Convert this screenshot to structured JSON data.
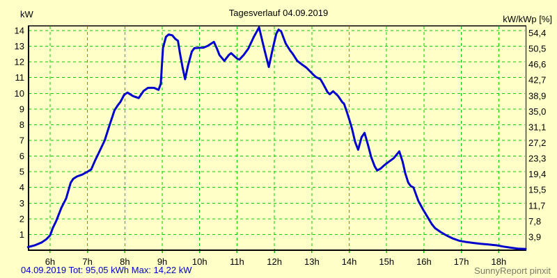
{
  "window": {
    "background": "#FFFFC8"
  },
  "header": {
    "left_axis_unit": "kW",
    "title": "Tagesverlauf 04.09.2019",
    "right_axis_unit": "kW/kWp [%]"
  },
  "footer": {
    "summary": "04.09.2019 Tot: 95,05 kWh Max: 14,22 kW",
    "branding": "SunnyReport pinxit"
  },
  "colors": {
    "background": "#FFFFC8",
    "grid": "#00CC00",
    "curve": "#0000CC",
    "frame": "#000000",
    "summary_text": "#0000CC",
    "branding_text": "#7A7A66"
  },
  "chart_data": {
    "type": "line",
    "title": "Tagesverlauf 04.09.2019",
    "grid": true,
    "legend_position": "none",
    "left_axis": {
      "label": "kW",
      "ticks": [
        14,
        13,
        12,
        11,
        10,
        9,
        8,
        7,
        6,
        5,
        4,
        3,
        2,
        1
      ]
    },
    "right_axis": {
      "label": "kW/kWp [%]",
      "ticks": [
        "54,4",
        "50,5",
        "46,6",
        "42,7",
        "38,9",
        "35,0",
        "31,1",
        "27,2",
        "23,3",
        "19,4",
        "15,5",
        "11,7",
        "7,8",
        "3,9"
      ]
    },
    "x_axis": {
      "hours": [
        6,
        7,
        8,
        9,
        10,
        11,
        12,
        13,
        14,
        15,
        16,
        17,
        18
      ],
      "labels": [
        "6h",
        "7h",
        "8h",
        "9h",
        "10h",
        "11h",
        "12h",
        "13h",
        "14h",
        "15h",
        "16h",
        "17h",
        "18h"
      ]
    },
    "xlim": [
      5.405,
      18.72
    ],
    "ylim": [
      0,
      14.31
    ],
    "stats": {
      "date": "04.09.2019",
      "total_energy": "95,05 kWh",
      "max_power": "14,22 kW"
    },
    "series": [
      {
        "name": "pv_power",
        "unit": "kW",
        "points": [
          [
            5.41,
            0.2
          ],
          [
            5.6,
            0.32
          ],
          [
            5.78,
            0.5
          ],
          [
            5.9,
            0.7
          ],
          [
            6.0,
            0.95
          ],
          [
            6.07,
            1.4
          ],
          [
            6.17,
            1.9
          ],
          [
            6.3,
            2.7
          ],
          [
            6.43,
            3.3
          ],
          [
            6.55,
            4.3
          ],
          [
            6.62,
            4.55
          ],
          [
            6.72,
            4.7
          ],
          [
            6.86,
            4.82
          ],
          [
            7.0,
            5.0
          ],
          [
            7.1,
            5.15
          ],
          [
            7.2,
            5.7
          ],
          [
            7.3,
            6.2
          ],
          [
            7.46,
            7.0
          ],
          [
            7.58,
            7.9
          ],
          [
            7.65,
            8.4
          ],
          [
            7.72,
            8.9
          ],
          [
            7.8,
            9.2
          ],
          [
            7.88,
            9.45
          ],
          [
            7.98,
            9.9
          ],
          [
            8.07,
            10.05
          ],
          [
            8.22,
            9.82
          ],
          [
            8.37,
            9.7
          ],
          [
            8.5,
            10.15
          ],
          [
            8.62,
            10.35
          ],
          [
            8.78,
            10.35
          ],
          [
            8.9,
            10.22
          ],
          [
            8.96,
            10.6
          ],
          [
            9.02,
            12.9
          ],
          [
            9.1,
            13.6
          ],
          [
            9.17,
            13.75
          ],
          [
            9.27,
            13.7
          ],
          [
            9.35,
            13.47
          ],
          [
            9.42,
            13.35
          ],
          [
            9.47,
            12.6
          ],
          [
            9.54,
            11.7
          ],
          [
            9.61,
            10.9
          ],
          [
            9.69,
            11.78
          ],
          [
            9.79,
            12.66
          ],
          [
            9.86,
            12.88
          ],
          [
            10.0,
            12.9
          ],
          [
            10.1,
            12.91
          ],
          [
            10.22,
            13.03
          ],
          [
            10.38,
            13.28
          ],
          [
            10.47,
            12.81
          ],
          [
            10.53,
            12.44
          ],
          [
            10.66,
            12.07
          ],
          [
            10.78,
            12.44
          ],
          [
            10.84,
            12.56
          ],
          [
            11.0,
            12.22
          ],
          [
            11.06,
            12.15
          ],
          [
            11.18,
            12.45
          ],
          [
            11.3,
            12.85
          ],
          [
            11.45,
            13.6
          ],
          [
            11.59,
            14.21
          ],
          [
            11.72,
            12.9
          ],
          [
            11.85,
            11.68
          ],
          [
            11.95,
            12.8
          ],
          [
            12.05,
            13.8
          ],
          [
            12.11,
            14.06
          ],
          [
            12.18,
            13.95
          ],
          [
            12.3,
            13.18
          ],
          [
            12.42,
            12.73
          ],
          [
            12.49,
            12.51
          ],
          [
            12.61,
            12.07
          ],
          [
            12.73,
            11.85
          ],
          [
            12.86,
            11.63
          ],
          [
            12.95,
            11.41
          ],
          [
            13.04,
            11.19
          ],
          [
            13.11,
            11.04
          ],
          [
            13.23,
            10.9
          ],
          [
            13.32,
            10.53
          ],
          [
            13.42,
            10.08
          ],
          [
            13.48,
            9.94
          ],
          [
            13.57,
            10.13
          ],
          [
            13.7,
            9.84
          ],
          [
            13.82,
            9.42
          ],
          [
            13.86,
            9.35
          ],
          [
            13.94,
            8.8
          ],
          [
            14.02,
            8.2
          ],
          [
            14.08,
            7.7
          ],
          [
            14.16,
            6.9
          ],
          [
            14.24,
            6.4
          ],
          [
            14.33,
            7.2
          ],
          [
            14.41,
            7.48
          ],
          [
            14.5,
            6.74
          ],
          [
            14.59,
            5.93
          ],
          [
            14.68,
            5.35
          ],
          [
            14.75,
            5.08
          ],
          [
            14.84,
            5.2
          ],
          [
            14.94,
            5.42
          ],
          [
            15.06,
            5.64
          ],
          [
            15.19,
            5.86
          ],
          [
            15.34,
            6.3
          ],
          [
            15.43,
            5.64
          ],
          [
            15.5,
            4.9
          ],
          [
            15.58,
            4.3
          ],
          [
            15.65,
            4.08
          ],
          [
            15.72,
            4.0
          ],
          [
            15.78,
            3.6
          ],
          [
            15.85,
            3.14
          ],
          [
            15.97,
            2.62
          ],
          [
            16.08,
            2.18
          ],
          [
            16.21,
            1.66
          ],
          [
            16.3,
            1.4
          ],
          [
            16.45,
            1.15
          ],
          [
            16.61,
            0.93
          ],
          [
            16.77,
            0.75
          ],
          [
            16.95,
            0.6
          ],
          [
            17.14,
            0.52
          ],
          [
            17.33,
            0.46
          ],
          [
            17.51,
            0.41
          ],
          [
            17.7,
            0.37
          ],
          [
            17.95,
            0.31
          ],
          [
            18.13,
            0.23
          ],
          [
            18.32,
            0.16
          ],
          [
            18.51,
            0.1
          ],
          [
            18.72,
            0.08
          ]
        ]
      }
    ]
  }
}
